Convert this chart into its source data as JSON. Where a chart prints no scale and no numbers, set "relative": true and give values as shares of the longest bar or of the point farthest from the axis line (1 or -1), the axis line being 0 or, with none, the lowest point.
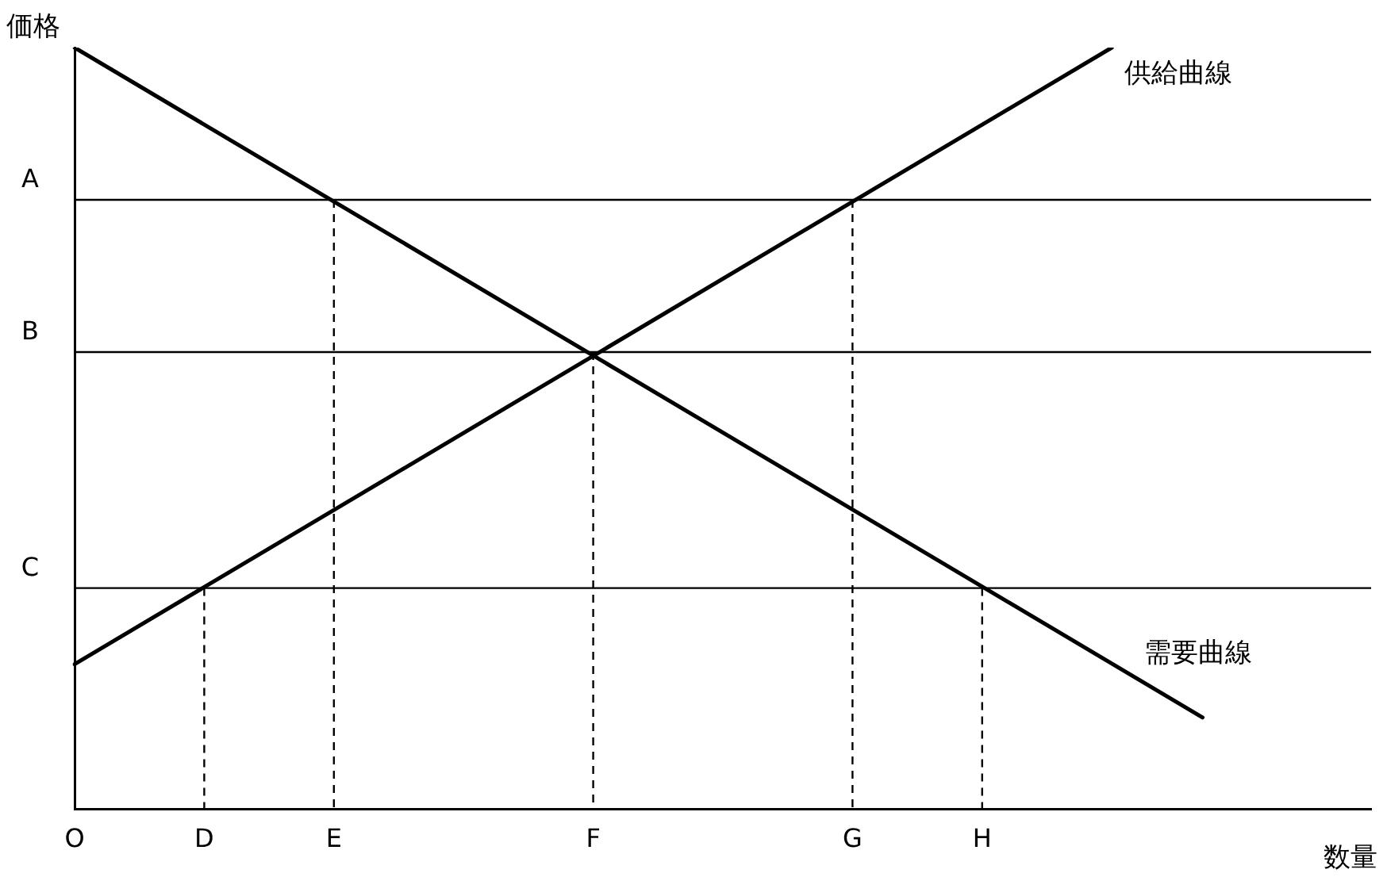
{
  "chart_data": {
    "type": "line",
    "xlabel": "数量",
    "ylabel": "価格",
    "relative": true,
    "categories": [
      "O",
      null,
      null,
      null,
      null,
      null,
      null,
      null,
      null,
      null,
      "D",
      null,
      null,
      null,
      null,
      null,
      null,
      null,
      null,
      null,
      "E",
      null,
      null,
      null,
      null,
      null,
      null,
      null,
      null,
      null,
      null,
      null,
      null,
      null,
      null,
      null,
      null,
      null,
      null,
      null,
      "F",
      null,
      null,
      null,
      null,
      null,
      null,
      null,
      null,
      null,
      null,
      null,
      null,
      null,
      null,
      null,
      null,
      null,
      null,
      null,
      "G",
      null,
      null,
      null,
      null,
      null,
      null,
      null,
      null,
      null,
      "H",
      null,
      null,
      null,
      null,
      null,
      null,
      null,
      null,
      null,
      null,
      null,
      null,
      null,
      null,
      null,
      null,
      null,
      null,
      null,
      null,
      null,
      null,
      null,
      null,
      null,
      null,
      null,
      null,
      null,
      null
    ],
    "series": [
      {
        "name": "供給曲線",
        "color": "#000000",
        "values": [
          0.19,
          null,
          null,
          null,
          null,
          null,
          null,
          null,
          null,
          null,
          null,
          null,
          null,
          null,
          null,
          null,
          null,
          null,
          null,
          null,
          null,
          null,
          null,
          null,
          null,
          null,
          null,
          null,
          null,
          null,
          null,
          null,
          null,
          null,
          null,
          null,
          null,
          null,
          null,
          null,
          null,
          null,
          null,
          null,
          null,
          null,
          null,
          null,
          null,
          null,
          null,
          null,
          null,
          null,
          null,
          null,
          null,
          null,
          null,
          null,
          null,
          null,
          null,
          null,
          null,
          null,
          null,
          null,
          null,
          null,
          null,
          null,
          null,
          null,
          null,
          null,
          null,
          null,
          null,
          null,
          1.0,
          null,
          null,
          null,
          null,
          null,
          null,
          null,
          null,
          null,
          null,
          null,
          null,
          null,
          null,
          null,
          null,
          null,
          null,
          null,
          null
        ]
      },
      {
        "name": "需要曲線",
        "color": "#000000",
        "values": [
          1.0,
          null,
          null,
          null,
          null,
          null,
          null,
          null,
          null,
          null,
          null,
          null,
          null,
          null,
          null,
          null,
          null,
          null,
          null,
          null,
          null,
          null,
          null,
          null,
          null,
          null,
          null,
          null,
          null,
          null,
          null,
          null,
          null,
          null,
          null,
          null,
          null,
          null,
          null,
          null,
          null,
          null,
          null,
          null,
          null,
          null,
          null,
          null,
          null,
          null,
          null,
          null,
          null,
          null,
          null,
          null,
          null,
          null,
          null,
          null,
          null,
          null,
          null,
          null,
          null,
          null,
          null,
          null,
          null,
          null,
          null,
          null,
          null,
          null,
          null,
          null,
          null,
          null,
          null,
          null,
          null,
          null,
          null,
          null,
          null,
          null,
          null,
          0.12,
          null,
          null,
          null,
          null,
          null,
          null,
          null,
          null,
          null,
          null,
          null,
          null,
          null
        ]
      }
    ],
    "ref_lines": [
      {
        "axis": "y",
        "value": 0.8,
        "label": "A",
        "color": "#000000"
      },
      {
        "axis": "y",
        "value": 0.6,
        "label": "B",
        "color": "#000000"
      },
      {
        "axis": "y",
        "value": 0.29,
        "label": "C",
        "color": "#000000"
      },
      {
        "axis": "x",
        "value": "D",
        "color": "#000000",
        "line_style": "dashed"
      },
      {
        "axis": "x",
        "value": "E",
        "color": "#000000",
        "line_style": "dashed"
      },
      {
        "axis": "x",
        "value": "F",
        "color": "#000000",
        "line_style": "dashed"
      },
      {
        "axis": "x",
        "value": "G",
        "color": "#000000",
        "line_style": "dashed"
      },
      {
        "axis": "x",
        "value": "H",
        "color": "#000000",
        "line_style": "dashed"
      }
    ],
    "marker": "none"
  }
}
